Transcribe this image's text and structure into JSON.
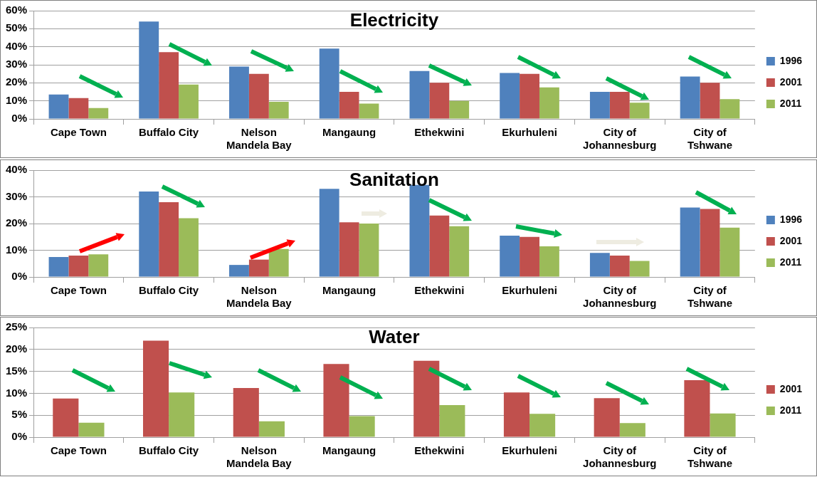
{
  "chart_data": [
    {
      "type": "bar",
      "title": "Electricity",
      "categories": [
        "Cape Town",
        "Buffalo City",
        "Nelson Mandela Bay",
        "Mangaung",
        "Ethekwini",
        "Ekurhuleni",
        "City of Johannesburg",
        "City of Tshwane"
      ],
      "series": [
        {
          "name": "1996",
          "color": "#4f81bd",
          "values": [
            13.5,
            54,
            29,
            39,
            26.5,
            25.5,
            15,
            23.5
          ]
        },
        {
          "name": "2001",
          "color": "#c0504d",
          "values": [
            11.5,
            37,
            25,
            15,
            20,
            25,
            15,
            20
          ]
        },
        {
          "name": "2011",
          "color": "#9bbb59",
          "values": [
            6,
            19,
            9.5,
            8.5,
            10,
            17.5,
            9,
            11
          ]
        }
      ],
      "ylim": [
        0,
        60
      ],
      "yticks": [
        {
          "value": 0,
          "label": "0%"
        },
        {
          "value": 10,
          "label": "10%"
        },
        {
          "value": 20,
          "label": "20%"
        },
        {
          "value": 30,
          "label": "30%"
        },
        {
          "value": 40,
          "label": "40%"
        },
        {
          "value": 50,
          "label": "50%"
        },
        {
          "value": 60,
          "label": "60%"
        }
      ],
      "grid": "y",
      "legend": "right"
    },
    {
      "type": "bar",
      "title": "Sanitation",
      "categories": [
        "Cape Town",
        "Buffalo City",
        "Nelson Mandela Bay",
        "Mangaung",
        "Ethekwini",
        "Ekurhuleni",
        "City of Johannesburg",
        "City of Tshwane"
      ],
      "series": [
        {
          "name": "1996",
          "color": "#4f81bd",
          "values": [
            7.5,
            32,
            4.5,
            33,
            34.5,
            15.5,
            9,
            26
          ]
        },
        {
          "name": "2001",
          "color": "#c0504d",
          "values": [
            8,
            28,
            6.5,
            20.5,
            23,
            15,
            8,
            25.5
          ]
        },
        {
          "name": "2011",
          "color": "#9bbb59",
          "values": [
            8.5,
            22,
            10.5,
            20,
            19,
            11.5,
            6,
            18.5
          ]
        }
      ],
      "ylim": [
        0,
        40
      ],
      "yticks": [
        {
          "value": 0,
          "label": "0%"
        },
        {
          "value": 10,
          "label": "10%"
        },
        {
          "value": 20,
          "label": "20%"
        },
        {
          "value": 30,
          "label": "30%"
        },
        {
          "value": 40,
          "label": "40%"
        }
      ],
      "grid": "y",
      "legend": "right"
    },
    {
      "type": "bar",
      "title": "Water",
      "categories": [
        "Cape Town",
        "Buffalo City",
        "Nelson Mandela Bay",
        "Mangaung",
        "Ethekwini",
        "Ekurhuleni",
        "City of Johannesburg",
        "City of Tshwane"
      ],
      "series": [
        {
          "name": "2001",
          "color": "#c0504d",
          "values": [
            8.8,
            22,
            11.2,
            16.7,
            17.4,
            10.2,
            8.9,
            13
          ]
        },
        {
          "name": "2011",
          "color": "#9bbb59",
          "values": [
            3.3,
            10.2,
            3.6,
            4.8,
            7.3,
            5.3,
            3.2,
            5.4
          ]
        }
      ],
      "ylim": [
        0,
        25
      ],
      "yticks": [
        {
          "value": 0,
          "label": "0%"
        },
        {
          "value": 5,
          "label": "5%"
        },
        {
          "value": 10,
          "label": "10%"
        },
        {
          "value": 15,
          "label": "15%"
        },
        {
          "value": 20,
          "label": "20%"
        },
        {
          "value": 25,
          "label": "25%"
        }
      ],
      "grid": "y",
      "legend": "right"
    }
  ]
}
